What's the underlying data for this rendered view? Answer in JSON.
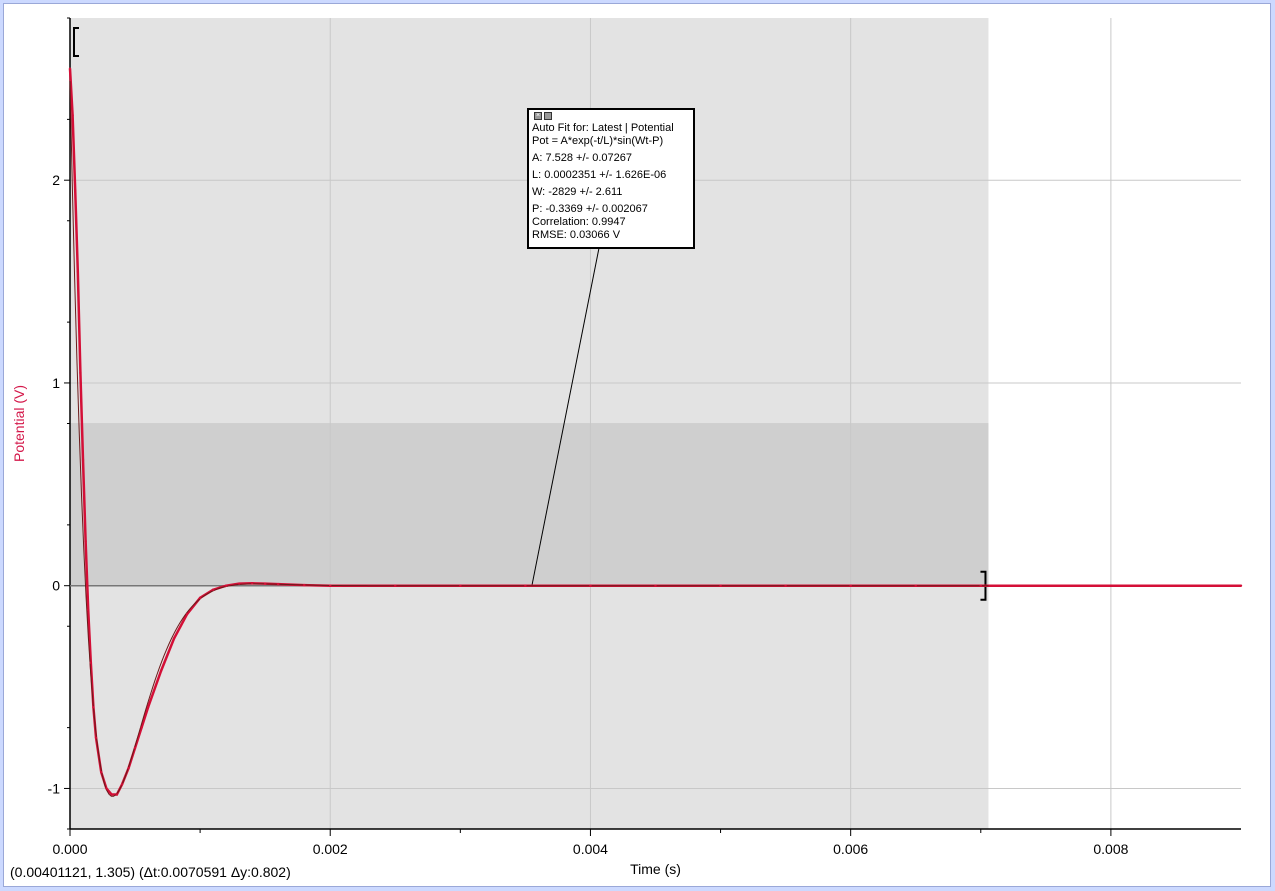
{
  "colors": {
    "series": "#d40f37",
    "fit": "#6b1a1a",
    "ylabel": "#d4184a",
    "grid": "#c8c8c8",
    "region_light": "#e3e3e3",
    "region_dark": "#cfcfcf",
    "window_border": "#ccd9ff"
  },
  "fit_box": {
    "close_icon": "close-icon",
    "options_icon": "options-icon",
    "title": "Auto Fit for: Latest | Potential",
    "equation": "Pot = A*exp(-t/L)*sin(Wt-P)",
    "A": "A: 7.528 +/- 0.07267",
    "L": "L: 0.0002351 +/- 1.626E-06",
    "W": "W: -2829 +/- 2.611",
    "P": "P: -0.3369 +/- 0.002067",
    "correlation": "Correlation: 0.9947",
    "rmse": "RMSE: 0.03066 V"
  },
  "status_text": "(0.00401121, 1.305) (Δt:0.0070591 Δy:0.802)",
  "chart_data": {
    "type": "line",
    "xlabel": "Time (s)",
    "ylabel": "Potential (V)",
    "xlim": [
      0,
      0.009
    ],
    "ylim": [
      -1.2,
      2.8
    ],
    "x_ticks": [
      0.0,
      0.002,
      0.004,
      0.006,
      0.008
    ],
    "x_tick_labels": [
      "0.000",
      "0.002",
      "0.004",
      "0.006",
      "0.008"
    ],
    "x_minor_ticks": [
      0.001,
      0.003,
      0.005,
      0.007
    ],
    "y_ticks": [
      -1,
      0,
      1,
      2
    ],
    "y_tick_labels": [
      "-1",
      "0",
      "1",
      "2"
    ],
    "grid": true,
    "fit_region": {
      "x_start": 0,
      "x_end": 0.0070591
    },
    "selection_region": {
      "x_start": 0,
      "x_end": 0.0070591,
      "y_start": 0,
      "y_end": 0.802
    },
    "fit_params": {
      "A": 7.528,
      "L": 0.0002351,
      "W": -2829,
      "P": -0.3369
    },
    "fit_label_anchor": {
      "x": 0.00355,
      "y": 0.0
    },
    "series": [
      {
        "x": [
          0,
          2e-05,
          4e-05,
          6e-05,
          8e-05,
          0.0001,
          0.00012,
          0.00014,
          0.00016,
          0.00018,
          0.0002,
          0.00024,
          0.00028,
          0.00032,
          0.00036,
          0.0004,
          0.00045,
          0.0005,
          0.00055,
          0.0006,
          0.0007,
          0.0008,
          0.0009,
          0.001,
          0.0011,
          0.0012,
          0.0013,
          0.0014,
          0.0015,
          0.0016,
          0.0018,
          0.002,
          0.0025,
          0.003,
          0.0035,
          0.004,
          0.0045,
          0.005,
          0.0055,
          0.006,
          0.0065,
          0.007,
          0.0075,
          0.008,
          0.0085,
          0.009
        ],
        "values": [
          2.55,
          2.32,
          1.95,
          1.55,
          1.05,
          0.62,
          0.22,
          -0.12,
          -0.38,
          -0.6,
          -0.75,
          -0.92,
          -1.0,
          -1.03,
          -1.03,
          -0.98,
          -0.9,
          -0.8,
          -0.7,
          -0.6,
          -0.42,
          -0.26,
          -0.14,
          -0.06,
          -0.02,
          0.0,
          0.01,
          0.012,
          0.01,
          0.008,
          0.003,
          0.0,
          0.0,
          0.0,
          0.0,
          0.0,
          0.0,
          0.0,
          0.0,
          0.0,
          0.0,
          0.0,
          0.0,
          0.0,
          0.0,
          0.0
        ]
      }
    ]
  }
}
